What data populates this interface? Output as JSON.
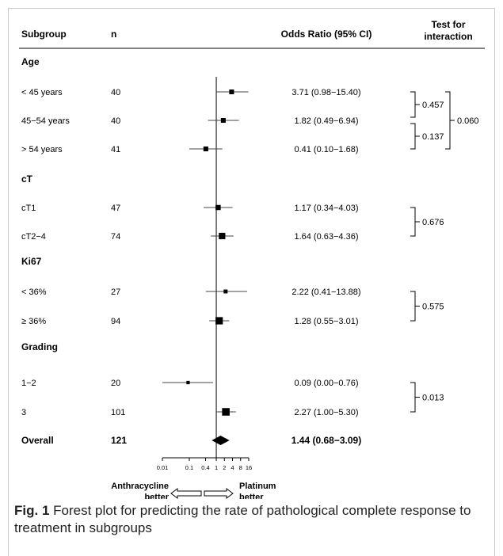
{
  "chart_data": {
    "type": "forest",
    "x_scale": "log",
    "xlim": [
      0.01,
      16
    ],
    "reference_line": 1,
    "x_ticks": [
      "0.01",
      "0.1",
      "0.4",
      "1",
      "2",
      "4",
      "8",
      "16"
    ],
    "x_tick_values": [
      0.01,
      0.1,
      0.4,
      1,
      2,
      4,
      8,
      16
    ],
    "headers": {
      "subgroup": "Subgroup",
      "n": "n",
      "or": "Odds Ratio (95% CI)",
      "interaction_line1": "Test for",
      "interaction_line2": "interaction"
    },
    "groups": [
      {
        "label": "Age",
        "rows": [
          {
            "label": "< 45 years",
            "n": "40",
            "or": 3.71,
            "lo": 0.98,
            "hi": 15.4,
            "text": "3.71 (0.98−15.40)"
          },
          {
            "label": "45−54 years",
            "n": "40",
            "or": 1.82,
            "lo": 0.49,
            "hi": 6.94,
            "text": "1.82 (0.49−6.94)"
          },
          {
            "label": "> 54 years",
            "n": "41",
            "or": 0.41,
            "lo": 0.1,
            "hi": 1.68,
            "text": "0.41 (0.10−1.68)"
          }
        ]
      },
      {
        "label": "cT",
        "rows": [
          {
            "label": "cT1",
            "n": "47",
            "or": 1.17,
            "lo": 0.34,
            "hi": 4.03,
            "text": "1.17 (0.34−4.03)"
          },
          {
            "label": "cT2−4",
            "n": "74",
            "or": 1.64,
            "lo": 0.63,
            "hi": 4.36,
            "text": "1.64 (0.63−4.36)"
          }
        ]
      },
      {
        "label": "Ki67",
        "rows": [
          {
            "label": "< 36%",
            "n": "27",
            "or": 2.22,
            "lo": 0.41,
            "hi": 13.88,
            "text": "2.22 (0.41−13.88)"
          },
          {
            "label": "≥ 36%",
            "n": "94",
            "or": 1.28,
            "lo": 0.55,
            "hi": 3.01,
            "text": "1.28 (0.55−3.01)"
          }
        ]
      },
      {
        "label": "Grading",
        "rows": [
          {
            "label": "1−2",
            "n": "20",
            "or": 0.09,
            "lo": 0.0,
            "hi": 0.76,
            "text": "0.09 (0.00−0.76)"
          },
          {
            "label": "3",
            "n": "101",
            "or": 2.27,
            "lo": 1.0,
            "hi": 5.3,
            "text": "2.27 (1.00−5.30)"
          }
        ]
      }
    ],
    "overall": {
      "label": "Overall",
      "n": "121",
      "or": 1.44,
      "lo": 0.68,
      "hi": 3.09,
      "text": "1.44 (0.68−3.09)"
    },
    "interactions": [
      {
        "rows": [
          0,
          1
        ],
        "p": "0.457"
      },
      {
        "rows": [
          1,
          2
        ],
        "p": "0.137"
      },
      {
        "rows": [
          0,
          2
        ],
        "p": "0.060"
      },
      {
        "rows": [
          3,
          4
        ],
        "p": "0.676"
      },
      {
        "rows": [
          5,
          6
        ],
        "p": "0.575"
      },
      {
        "rows": [
          7,
          8
        ],
        "p": "0.013"
      }
    ],
    "direction_left_line1": "Anthracycline",
    "direction_left_line2": "better",
    "direction_right_line1": "Platinum",
    "direction_right_line2": "better"
  },
  "caption": {
    "label": "Fig. 1",
    "text": "Forest plot for predicting the rate of pathological complete response to treatment in subgroups"
  }
}
